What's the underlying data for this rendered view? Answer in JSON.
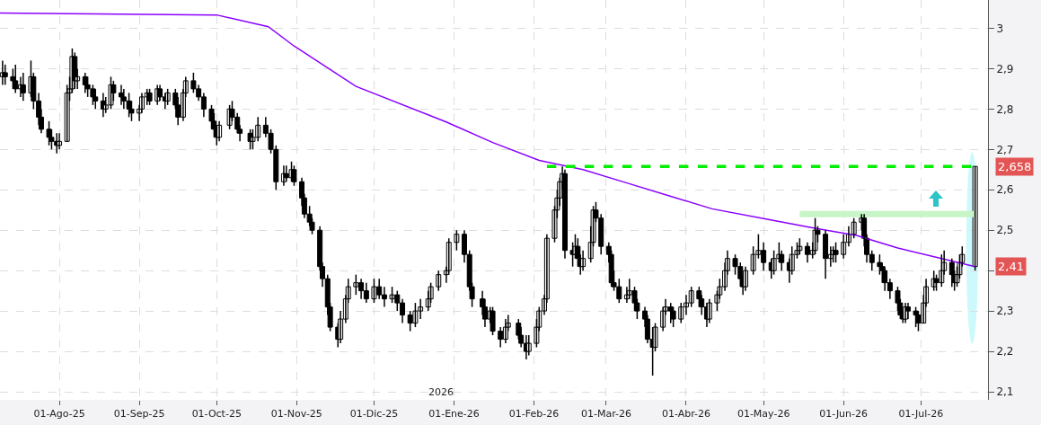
{
  "chart_data": {
    "type": "candlestick",
    "x": [
      "2025-07-10",
      "2025-07-11",
      "2025-07-14",
      "2025-07-15",
      "2025-07-17",
      "2025-07-18",
      "2025-07-21",
      "2025-07-22",
      "2025-07-24",
      "2025-07-25",
      "2025-07-28",
      "2025-07-29",
      "2025-07-31",
      "2025-08-01",
      "2025-08-04",
      "2025-08-05",
      "2025-08-06",
      "2025-08-07",
      "2025-08-08",
      "2025-08-11",
      "2025-08-12",
      "2025-08-14",
      "2025-08-15",
      "2025-08-18",
      "2025-08-19",
      "2025-08-21",
      "2025-08-22",
      "2025-08-25",
      "2025-08-26",
      "2025-08-28",
      "2025-08-29",
      "2025-09-01",
      "2025-09-02",
      "2025-09-04",
      "2025-09-05",
      "2025-09-08",
      "2025-09-09",
      "2025-09-11",
      "2025-09-12",
      "2025-09-15",
      "2025-09-16",
      "2025-09-18",
      "2025-09-19",
      "2025-09-22",
      "2025-09-24",
      "2025-09-26",
      "2025-09-29",
      "2025-09-30",
      "2025-10-01",
      "2025-10-02",
      "2025-10-06",
      "2025-10-07",
      "2025-10-09",
      "2025-10-10",
      "2025-10-14",
      "2025-10-15",
      "2025-10-17",
      "2025-10-20",
      "2025-10-22",
      "2025-10-24",
      "2025-10-27",
      "2025-10-28",
      "2025-10-30",
      "2025-10-31",
      "2025-11-03",
      "2025-11-04",
      "2025-11-06",
      "2025-11-07",
      "2025-11-10",
      "2025-11-11",
      "2025-11-13",
      "2025-11-14",
      "2025-11-17",
      "2025-11-18",
      "2025-11-20",
      "2025-11-21",
      "2025-11-24",
      "2025-11-26",
      "2025-11-28",
      "2025-12-01",
      "2025-12-03",
      "2025-12-05",
      "2025-12-08",
      "2025-12-10",
      "2025-12-12",
      "2025-12-15",
      "2025-12-17",
      "2025-12-19",
      "2025-12-22",
      "2025-12-23",
      "2025-12-26",
      "2025-12-29",
      "2025-12-30",
      "2026-01-02",
      "2026-01-05",
      "2026-01-07",
      "2026-01-08",
      "2026-01-12",
      "2026-01-13",
      "2026-01-15",
      "2026-01-16",
      "2026-01-19",
      "2026-01-21",
      "2026-01-22",
      "2026-01-26",
      "2026-01-27",
      "2026-01-29",
      "2026-01-30",
      "2026-02-02",
      "2026-02-03",
      "2026-02-05",
      "2026-02-06",
      "2026-02-09",
      "2026-02-10",
      "2026-02-11",
      "2026-02-12",
      "2026-02-13",
      "2026-02-16",
      "2026-02-17",
      "2026-02-18",
      "2026-02-19",
      "2026-02-20",
      "2026-02-23",
      "2026-02-24",
      "2026-02-25",
      "2026-02-27",
      "2026-03-02",
      "2026-03-03",
      "2026-03-04",
      "2026-03-06",
      "2026-03-09",
      "2026-03-10",
      "2026-03-12",
      "2026-03-13",
      "2026-03-16",
      "2026-03-17",
      "2026-03-19",
      "2026-03-20",
      "2026-03-23",
      "2026-03-24",
      "2026-03-26",
      "2026-03-27",
      "2026-03-30",
      "2026-04-01",
      "2026-04-03",
      "2026-04-06",
      "2026-04-07",
      "2026-04-09",
      "2026-04-10",
      "2026-04-13",
      "2026-04-14",
      "2026-04-16",
      "2026-04-17",
      "2026-04-20",
      "2026-04-22",
      "2026-04-23",
      "2026-04-24",
      "2026-04-27",
      "2026-04-29",
      "2026-05-01",
      "2026-05-04",
      "2026-05-05",
      "2026-05-07",
      "2026-05-08",
      "2026-05-11",
      "2026-05-12",
      "2026-05-14",
      "2026-05-15",
      "2026-05-18",
      "2026-05-20",
      "2026-05-21",
      "2026-05-22",
      "2026-05-25",
      "2026-05-27",
      "2026-05-28",
      "2026-05-29",
      "2026-06-01",
      "2026-06-03",
      "2026-06-05",
      "2026-06-08",
      "2026-06-09",
      "2026-06-10",
      "2026-06-12",
      "2026-06-15",
      "2026-06-16",
      "2026-06-17",
      "2026-06-19",
      "2026-06-22",
      "2026-06-23",
      "2026-06-24",
      "2026-06-25",
      "2026-06-26",
      "2026-06-29",
      "2026-06-30",
      "2026-07-02",
      "2026-07-03",
      "2026-07-06",
      "2026-07-07",
      "2026-07-09",
      "2026-07-10",
      "2026-07-13",
      "2026-07-14",
      "2026-07-15",
      "2026-07-16",
      "2026-07-17",
      "2026-07-22"
    ],
    "ohlc": [
      [
        2.88,
        2.92,
        2.86,
        2.89
      ],
      [
        2.89,
        2.91,
        2.86,
        2.88
      ],
      [
        2.88,
        2.9,
        2.85,
        2.87
      ],
      [
        2.87,
        2.91,
        2.84,
        2.85
      ],
      [
        2.85,
        2.88,
        2.83,
        2.86
      ],
      [
        2.86,
        2.89,
        2.82,
        2.84
      ],
      [
        2.84,
        2.92,
        2.83,
        2.88
      ],
      [
        2.88,
        2.89,
        2.8,
        2.82
      ],
      [
        2.82,
        2.84,
        2.76,
        2.78
      ],
      [
        2.78,
        2.8,
        2.74,
        2.75
      ],
      [
        2.75,
        2.77,
        2.71,
        2.73
      ],
      [
        2.73,
        2.75,
        2.7,
        2.72
      ],
      [
        2.72,
        2.74,
        2.69,
        2.71
      ],
      [
        2.71,
        2.74,
        2.7,
        2.72
      ],
      [
        2.72,
        2.86,
        2.72,
        2.84
      ],
      [
        2.84,
        2.88,
        2.82,
        2.85
      ],
      [
        2.85,
        2.95,
        2.84,
        2.93
      ],
      [
        2.93,
        2.94,
        2.85,
        2.87
      ],
      [
        2.87,
        2.9,
        2.85,
        2.88
      ],
      [
        2.88,
        2.89,
        2.84,
        2.86
      ],
      [
        2.86,
        2.88,
        2.83,
        2.85
      ],
      [
        2.85,
        2.86,
        2.81,
        2.83
      ],
      [
        2.83,
        2.85,
        2.8,
        2.82
      ],
      [
        2.82,
        2.84,
        2.78,
        2.8
      ],
      [
        2.8,
        2.83,
        2.79,
        2.81
      ],
      [
        2.81,
        2.88,
        2.8,
        2.86
      ],
      [
        2.86,
        2.87,
        2.82,
        2.84
      ],
      [
        2.84,
        2.86,
        2.81,
        2.83
      ],
      [
        2.83,
        2.85,
        2.8,
        2.82
      ],
      [
        2.82,
        2.84,
        2.78,
        2.8
      ],
      [
        2.8,
        2.82,
        2.77,
        2.79
      ],
      [
        2.79,
        2.81,
        2.77,
        2.8
      ],
      [
        2.8,
        2.84,
        2.79,
        2.83
      ],
      [
        2.83,
        2.85,
        2.81,
        2.84
      ],
      [
        2.84,
        2.85,
        2.81,
        2.82
      ],
      [
        2.82,
        2.86,
        2.81,
        2.85
      ],
      [
        2.85,
        2.86,
        2.82,
        2.83
      ],
      [
        2.83,
        2.84,
        2.8,
        2.82
      ],
      [
        2.82,
        2.85,
        2.81,
        2.84
      ],
      [
        2.84,
        2.85,
        2.8,
        2.81
      ],
      [
        2.81,
        2.83,
        2.76,
        2.78
      ],
      [
        2.78,
        2.85,
        2.77,
        2.84
      ],
      [
        2.84,
        2.88,
        2.83,
        2.87
      ],
      [
        2.87,
        2.89,
        2.84,
        2.85
      ],
      [
        2.85,
        2.86,
        2.82,
        2.83
      ],
      [
        2.83,
        2.84,
        2.78,
        2.8
      ],
      [
        2.8,
        2.81,
        2.75,
        2.77
      ],
      [
        2.77,
        2.79,
        2.73,
        2.75
      ],
      [
        2.75,
        2.76,
        2.71,
        2.73
      ],
      [
        2.73,
        2.77,
        2.72,
        2.76
      ],
      [
        2.76,
        2.81,
        2.75,
        2.8
      ],
      [
        2.8,
        2.82,
        2.77,
        2.78
      ],
      [
        2.78,
        2.79,
        2.74,
        2.75
      ],
      [
        2.75,
        2.76,
        2.72,
        2.74
      ],
      [
        2.74,
        2.75,
        2.7,
        2.72
      ],
      [
        2.72,
        2.75,
        2.7,
        2.73
      ],
      [
        2.73,
        2.78,
        2.72,
        2.76
      ],
      [
        2.76,
        2.78,
        2.73,
        2.74
      ],
      [
        2.74,
        2.75,
        2.69,
        2.7
      ],
      [
        2.7,
        2.71,
        2.6,
        2.62
      ],
      [
        2.62,
        2.66,
        2.61,
        2.64
      ],
      [
        2.64,
        2.66,
        2.62,
        2.63
      ],
      [
        2.63,
        2.67,
        2.62,
        2.65
      ],
      [
        2.65,
        2.66,
        2.61,
        2.62
      ],
      [
        2.62,
        2.63,
        2.56,
        2.58
      ],
      [
        2.58,
        2.59,
        2.53,
        2.54
      ],
      [
        2.54,
        2.56,
        2.51,
        2.52
      ],
      [
        2.52,
        2.53,
        2.49,
        2.5
      ],
      [
        2.5,
        2.51,
        2.4,
        2.41
      ],
      [
        2.41,
        2.42,
        2.36,
        2.38
      ],
      [
        2.38,
        2.39,
        2.29,
        2.31
      ],
      [
        2.31,
        2.32,
        2.25,
        2.26
      ],
      [
        2.26,
        2.27,
        2.21,
        2.23
      ],
      [
        2.23,
        2.3,
        2.22,
        2.28
      ],
      [
        2.28,
        2.34,
        2.27,
        2.33
      ],
      [
        2.33,
        2.38,
        2.32,
        2.36
      ],
      [
        2.36,
        2.39,
        2.34,
        2.37
      ],
      [
        2.37,
        2.38,
        2.33,
        2.35
      ],
      [
        2.35,
        2.37,
        2.32,
        2.33
      ],
      [
        2.33,
        2.38,
        2.32,
        2.36
      ],
      [
        2.36,
        2.38,
        2.33,
        2.34
      ],
      [
        2.34,
        2.36,
        2.31,
        2.33
      ],
      [
        2.33,
        2.36,
        2.32,
        2.34
      ],
      [
        2.34,
        2.35,
        2.3,
        2.32
      ],
      [
        2.32,
        2.33,
        2.27,
        2.29
      ],
      [
        2.29,
        2.3,
        2.25,
        2.27
      ],
      [
        2.27,
        2.32,
        2.26,
        2.3
      ],
      [
        2.3,
        2.33,
        2.28,
        2.31
      ],
      [
        2.31,
        2.35,
        2.3,
        2.33
      ],
      [
        2.33,
        2.37,
        2.32,
        2.36
      ],
      [
        2.36,
        2.4,
        2.35,
        2.39
      ],
      [
        2.39,
        2.41,
        2.37,
        2.4
      ],
      [
        2.4,
        2.48,
        2.39,
        2.47
      ],
      [
        2.47,
        2.5,
        2.45,
        2.49
      ],
      [
        2.49,
        2.5,
        2.42,
        2.44
      ],
      [
        2.44,
        2.45,
        2.35,
        2.36
      ],
      [
        2.36,
        2.37,
        2.31,
        2.33
      ],
      [
        2.33,
        2.35,
        2.29,
        2.31
      ],
      [
        2.31,
        2.33,
        2.26,
        2.28
      ],
      [
        2.28,
        2.31,
        2.27,
        2.3
      ],
      [
        2.3,
        2.31,
        2.24,
        2.25
      ],
      [
        2.25,
        2.26,
        2.21,
        2.23
      ],
      [
        2.23,
        2.28,
        2.22,
        2.26
      ],
      [
        2.26,
        2.29,
        2.25,
        2.27
      ],
      [
        2.27,
        2.28,
        2.23,
        2.24
      ],
      [
        2.24,
        2.26,
        2.21,
        2.22
      ],
      [
        2.22,
        2.24,
        2.18,
        2.2
      ],
      [
        2.2,
        2.24,
        2.19,
        2.22
      ],
      [
        2.22,
        2.28,
        2.21,
        2.26
      ],
      [
        2.26,
        2.31,
        2.25,
        2.3
      ],
      [
        2.3,
        2.34,
        2.29,
        2.33
      ],
      [
        2.33,
        2.49,
        2.32,
        2.48
      ],
      [
        2.48,
        2.56,
        2.47,
        2.55
      ],
      [
        2.55,
        2.6,
        2.53,
        2.58
      ],
      [
        2.58,
        2.63,
        2.56,
        2.62
      ],
      [
        2.62,
        2.658,
        2.6,
        2.64
      ],
      [
        2.64,
        2.65,
        2.43,
        2.45
      ],
      [
        2.45,
        2.47,
        2.41,
        2.44
      ],
      [
        2.44,
        2.49,
        2.43,
        2.46
      ],
      [
        2.46,
        2.48,
        2.41,
        2.43
      ],
      [
        2.43,
        2.44,
        2.39,
        2.41
      ],
      [
        2.41,
        2.45,
        2.4,
        2.43
      ],
      [
        2.43,
        2.51,
        2.42,
        2.47
      ],
      [
        2.47,
        2.56,
        2.46,
        2.55
      ],
      [
        2.55,
        2.57,
        2.52,
        2.53
      ],
      [
        2.53,
        2.54,
        2.44,
        2.46
      ],
      [
        2.46,
        2.47,
        2.42,
        2.44
      ],
      [
        2.44,
        2.45,
        2.36,
        2.37
      ],
      [
        2.37,
        2.4,
        2.35,
        2.36
      ],
      [
        2.36,
        2.38,
        2.32,
        2.33
      ],
      [
        2.33,
        2.36,
        2.32,
        2.34
      ],
      [
        2.34,
        2.38,
        2.33,
        2.35
      ],
      [
        2.35,
        2.36,
        2.3,
        2.32
      ],
      [
        2.32,
        2.33,
        2.28,
        2.3
      ],
      [
        2.3,
        2.31,
        2.26,
        2.28
      ],
      [
        2.28,
        2.29,
        2.22,
        2.23
      ],
      [
        2.23,
        2.26,
        2.14,
        2.21
      ],
      [
        2.21,
        2.27,
        2.2,
        2.26
      ],
      [
        2.26,
        2.31,
        2.25,
        2.3
      ],
      [
        2.3,
        2.33,
        2.29,
        2.31
      ],
      [
        2.31,
        2.32,
        2.27,
        2.3
      ],
      [
        2.3,
        2.31,
        2.26,
        2.28
      ],
      [
        2.28,
        2.32,
        2.27,
        2.31
      ],
      [
        2.31,
        2.34,
        2.29,
        2.32
      ],
      [
        2.32,
        2.36,
        2.31,
        2.35
      ],
      [
        2.35,
        2.36,
        2.31,
        2.33
      ],
      [
        2.33,
        2.34,
        2.29,
        2.31
      ],
      [
        2.31,
        2.32,
        2.26,
        2.28
      ],
      [
        2.28,
        2.33,
        2.27,
        2.32
      ],
      [
        2.32,
        2.35,
        2.3,
        2.34
      ],
      [
        2.34,
        2.38,
        2.33,
        2.36
      ],
      [
        2.36,
        2.42,
        2.35,
        2.4
      ],
      [
        2.4,
        2.45,
        2.39,
        2.43
      ],
      [
        2.43,
        2.44,
        2.39,
        2.41
      ],
      [
        2.41,
        2.42,
        2.36,
        2.38
      ],
      [
        2.38,
        2.39,
        2.34,
        2.36
      ],
      [
        2.36,
        2.41,
        2.35,
        2.4
      ],
      [
        2.4,
        2.46,
        2.39,
        2.44
      ],
      [
        2.44,
        2.49,
        2.43,
        2.45
      ],
      [
        2.45,
        2.47,
        2.4,
        2.42
      ],
      [
        2.42,
        2.43,
        2.38,
        2.4
      ],
      [
        2.4,
        2.45,
        2.39,
        2.43
      ],
      [
        2.43,
        2.47,
        2.42,
        2.44
      ],
      [
        2.44,
        2.45,
        2.4,
        2.42
      ],
      [
        2.42,
        2.43,
        2.37,
        2.4
      ],
      [
        2.4,
        2.46,
        2.39,
        2.44
      ],
      [
        2.44,
        2.47,
        2.43,
        2.45
      ],
      [
        2.45,
        2.48,
        2.44,
        2.46
      ],
      [
        2.46,
        2.47,
        2.42,
        2.44
      ],
      [
        2.44,
        2.47,
        2.43,
        2.45
      ],
      [
        2.45,
        2.53,
        2.44,
        2.5
      ],
      [
        2.5,
        2.51,
        2.47,
        2.49
      ],
      [
        2.49,
        2.5,
        2.38,
        2.43
      ],
      [
        2.43,
        2.46,
        2.41,
        2.44
      ],
      [
        2.44,
        2.46,
        2.42,
        2.45
      ],
      [
        2.45,
        2.47,
        2.42,
        2.44
      ],
      [
        2.44,
        2.49,
        2.43,
        2.47
      ],
      [
        2.47,
        2.51,
        2.46,
        2.49
      ],
      [
        2.49,
        2.53,
        2.48,
        2.52
      ],
      [
        2.52,
        2.54,
        2.5,
        2.53
      ],
      [
        2.53,
        2.54,
        2.46,
        2.48
      ],
      [
        2.48,
        2.49,
        2.42,
        2.44
      ],
      [
        2.44,
        2.45,
        2.4,
        2.42
      ],
      [
        2.42,
        2.44,
        2.39,
        2.41
      ],
      [
        2.41,
        2.42,
        2.37,
        2.4
      ],
      [
        2.4,
        2.41,
        2.35,
        2.37
      ],
      [
        2.37,
        2.38,
        2.33,
        2.35
      ],
      [
        2.35,
        2.36,
        2.3,
        2.32
      ],
      [
        2.32,
        2.33,
        2.28,
        2.29
      ],
      [
        2.29,
        2.3,
        2.27,
        2.28
      ],
      [
        2.28,
        2.32,
        2.27,
        2.31
      ],
      [
        2.31,
        2.32,
        2.28,
        2.3
      ],
      [
        2.3,
        2.31,
        2.26,
        2.29
      ],
      [
        2.29,
        2.3,
        2.25,
        2.27
      ],
      [
        2.27,
        2.34,
        2.27,
        2.32
      ],
      [
        2.32,
        2.38,
        2.31,
        2.36
      ],
      [
        2.36,
        2.4,
        2.35,
        2.38
      ],
      [
        2.38,
        2.39,
        2.35,
        2.37
      ],
      [
        2.37,
        2.44,
        2.36,
        2.4
      ],
      [
        2.4,
        2.45,
        2.39,
        2.42
      ],
      [
        2.42,
        2.43,
        2.36,
        2.39
      ],
      [
        2.39,
        2.4,
        2.35,
        2.37
      ],
      [
        2.37,
        2.41,
        2.36,
        2.39
      ],
      [
        2.39,
        2.44,
        2.38,
        2.42
      ],
      [
        2.42,
        2.46,
        2.41,
        2.44
      ],
      [
        2.41,
        2.658,
        2.4,
        2.658
      ]
    ],
    "color": "#000000",
    "series": [
      {
        "type": "line",
        "color": "#8a00ff",
        "line_style": "solid",
        "x": [
          "2025-07-09",
          "2025-10-01",
          "2025-10-21",
          "2025-10-31",
          "2025-11-24",
          "2025-12-29",
          "2026-01-16",
          "2026-02-03",
          "2026-02-20",
          "2026-03-09",
          "2026-03-26",
          "2026-04-11",
          "2026-05-01",
          "2026-05-19",
          "2026-06-06",
          "2026-06-22",
          "2026-07-09",
          "2026-07-22"
        ],
        "values": [
          3.038,
          3.033,
          3.004,
          2.956,
          2.856,
          2.768,
          2.717,
          2.673,
          2.65,
          2.617,
          2.584,
          2.553,
          2.529,
          2.507,
          2.487,
          2.456,
          2.43,
          2.41
        ]
      },
      {
        "type": "line",
        "color": "#00ee00",
        "line_style": "dashed",
        "x": [
          "2026-02-06",
          "2026-07-22"
        ],
        "values": [
          2.658,
          2.658
        ]
      },
      {
        "type": "line",
        "color": "#c8f5c8",
        "line_style": "solid",
        "x": [
          "2026-05-15",
          "2026-07-22"
        ],
        "values": [
          2.54,
          2.54
        ]
      }
    ],
    "xlim": [
      "2025-07-09",
      "2026-07-27"
    ],
    "xticks": [
      {
        "value": "2025-08-01",
        "label": "01-Ago-25"
      },
      {
        "value": "2025-09-01",
        "label": "01-Sep-25"
      },
      {
        "value": "2025-10-01",
        "label": "01-Oct-25"
      },
      {
        "value": "2025-11-01",
        "label": "01-Nov-25"
      },
      {
        "value": "2025-12-01",
        "label": "01-Dic-25"
      },
      {
        "value": "2026-01-01",
        "label": "01-Ene-26"
      },
      {
        "value": "2026-02-01",
        "label": "01-Feb-26"
      },
      {
        "value": "2026-03-01",
        "label": "01-Mar-26"
      },
      {
        "value": "2026-04-01",
        "label": "01-Abr-26"
      },
      {
        "value": "2026-05-01",
        "label": "01-May-26"
      },
      {
        "value": "2026-06-01",
        "label": "01-Jun-26"
      },
      {
        "value": "2026-07-01",
        "label": "01-Jul-26"
      }
    ],
    "ylim": [
      2.08,
      3.07
    ],
    "yticks": [
      {
        "value": 2.1,
        "label": "2,1"
      },
      {
        "value": 2.2,
        "label": "2,2"
      },
      {
        "value": 2.3,
        "label": "2,3"
      },
      {
        "value": 2.4,
        "label": null
      },
      {
        "value": 2.5,
        "label": "2,5"
      },
      {
        "value": 2.6,
        "label": "2,6"
      },
      {
        "value": 2.7,
        "label": "2,7"
      },
      {
        "value": 2.8,
        "label": "2,8"
      },
      {
        "value": 2.9,
        "label": "2,9"
      },
      3
    ],
    "grid": true,
    "annotations": [
      "2,658",
      "2,41",
      "2026"
    ]
  }
}
